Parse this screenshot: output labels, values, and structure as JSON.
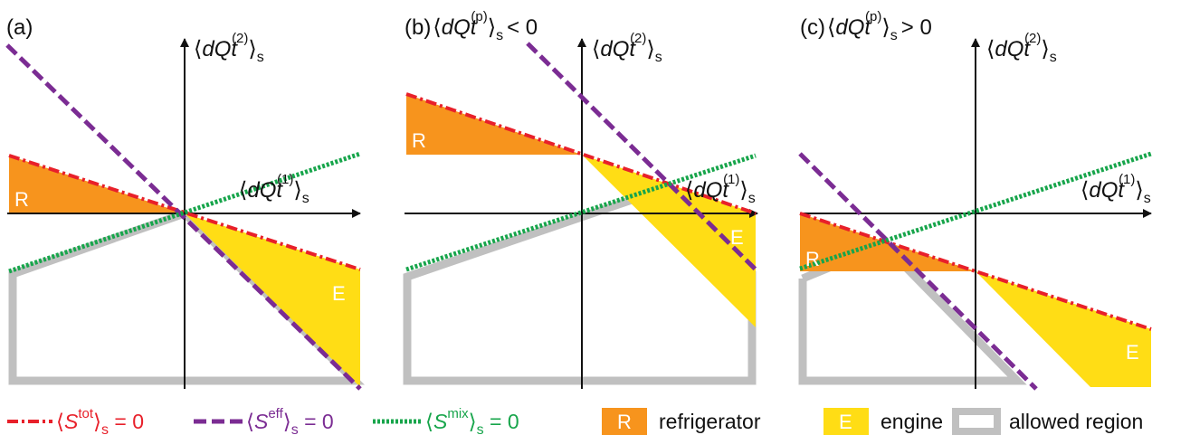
{
  "colors": {
    "refrigerator": "#f7941d",
    "engine": "#ffdd15",
    "allowed_region": "#c0c0c0",
    "total_entropy_line": "#e8202a",
    "effective_entropy_line": "#7b2c93",
    "mixing_entropy_line": "#17a54b",
    "axes": "#111111"
  },
  "panels": [
    {
      "label": "(a)",
      "condition": "",
      "y_axis": {
        "open": "⟨",
        "base": "dQ",
        "italic": "t",
        "sup": "(2)",
        "close": "⟩",
        "sub": "s"
      },
      "x_axis": {
        "open": "⟨",
        "base": "dQ",
        "italic": "t",
        "sup": "(1)",
        "close": "⟩",
        "sub": "s"
      },
      "region_R": "R",
      "region_E": "E"
    },
    {
      "label": "(b)",
      "condition": {
        "open": "⟨",
        "base": "dQ",
        "italic": "t",
        "sup": "(p)",
        "close": "⟩",
        "sub": "s",
        "relation": "< 0"
      },
      "y_axis": {
        "open": "⟨",
        "base": "dQ",
        "italic": "t",
        "sup": "(2)",
        "close": "⟩",
        "sub": "s"
      },
      "x_axis": {
        "open": "⟨",
        "base": "dQ",
        "italic": "t",
        "sup": "(1)",
        "close": "⟩",
        "sub": "s"
      },
      "region_R": "R",
      "region_E": "E"
    },
    {
      "label": "(c)",
      "condition": {
        "open": "⟨",
        "base": "dQ",
        "italic": "t",
        "sup": "(p)",
        "close": "⟩",
        "sub": "s",
        "relation": "> 0"
      },
      "y_axis": {
        "open": "⟨",
        "base": "dQ",
        "italic": "t",
        "sup": "(2)",
        "close": "⟩",
        "sub": "s"
      },
      "x_axis": {
        "open": "⟨",
        "base": "dQ",
        "italic": "t",
        "sup": "(1)",
        "close": "⟩",
        "sub": "s"
      },
      "region_R": "R",
      "region_E": "E"
    }
  ],
  "legend": {
    "total": {
      "open": "⟨",
      "S": "S",
      "sup": "tot",
      "close": "⟩",
      "sub": "s",
      "eq": " = 0"
    },
    "effective": {
      "open": "⟨",
      "S": "S",
      "sup": "eff",
      "close": "⟩",
      "sub": "s",
      "eq": " = 0"
    },
    "mixing": {
      "open": "⟨",
      "S": "S",
      "sup": "mix",
      "close": "⟩",
      "sub": "s",
      "eq": " = 0"
    },
    "refrigerator_box": "R",
    "refrigerator_label": "refrigerator",
    "engine_box": "E",
    "engine_label": "engine",
    "allowed_region_label": "allowed region"
  }
}
